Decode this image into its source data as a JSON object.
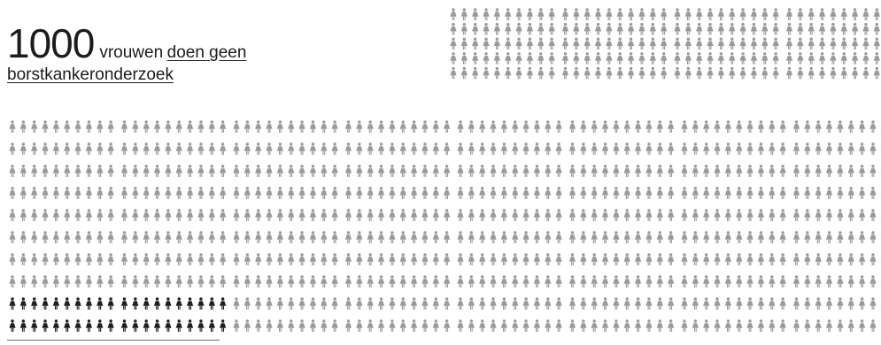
{
  "header": {
    "count": "1000",
    "word": "vrouwen",
    "phrase_line1": "doen geen",
    "phrase_line2": "borstkankeronderzoek"
  },
  "figure_grid": {
    "total": 1000,
    "highlighted": 20,
    "icon_name": "woman-icon",
    "colors": {
      "base": "#9a9a9a",
      "highlight": "#1e1e1e"
    }
  }
}
